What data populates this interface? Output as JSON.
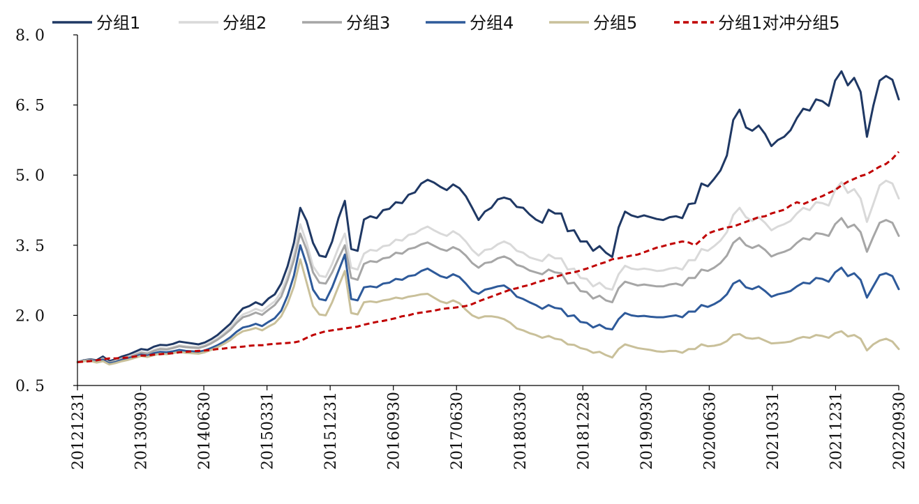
{
  "chart_data": {
    "type": "line",
    "title": "",
    "xlabel": "",
    "ylabel": "",
    "ylim": [
      0.5,
      8.0
    ],
    "y_ticks": [
      0.5,
      2.0,
      3.5,
      5.0,
      6.5,
      8.0
    ],
    "y_tick_labels": [
      "0. 5",
      "2. 0",
      "3. 5",
      "5. 0",
      "6. 5",
      "8. 0"
    ],
    "x_tick_labels": [
      "20121231",
      "20130930",
      "20140630",
      "20150331",
      "20151231",
      "20160930",
      "20170630",
      "20180330",
      "20181228",
      "20190930",
      "20200630",
      "20210331",
      "20211231",
      "20220930"
    ],
    "grid": false,
    "legend_position": "top",
    "series": [
      {
        "name": "分组1",
        "color": "#1F3864",
        "dash": "solid",
        "values": [
          1.0,
          1.04,
          1.06,
          1.04,
          1.12,
          1.02,
          1.06,
          1.12,
          1.16,
          1.22,
          1.28,
          1.26,
          1.33,
          1.37,
          1.36,
          1.39,
          1.44,
          1.42,
          1.4,
          1.38,
          1.42,
          1.49,
          1.58,
          1.7,
          1.82,
          2.0,
          2.15,
          2.2,
          2.28,
          2.22,
          2.36,
          2.45,
          2.68,
          3.05,
          3.55,
          4.3,
          4.02,
          3.55,
          3.28,
          3.25,
          3.58,
          4.08,
          4.45,
          3.42,
          3.38,
          4.05,
          4.12,
          4.08,
          4.25,
          4.28,
          4.42,
          4.4,
          4.58,
          4.63,
          4.82,
          4.9,
          4.84,
          4.75,
          4.68,
          4.8,
          4.72,
          4.55,
          4.3,
          4.04,
          4.22,
          4.3,
          4.48,
          4.52,
          4.48,
          4.32,
          4.3,
          4.16,
          4.05,
          3.98,
          4.26,
          4.18,
          4.18,
          3.8,
          3.82,
          3.58,
          3.58,
          3.38,
          3.48,
          3.34,
          3.25,
          3.88,
          4.22,
          4.14,
          4.1,
          4.14,
          4.1,
          4.06,
          4.04,
          4.1,
          4.12,
          4.08,
          4.38,
          4.4,
          4.82,
          4.76,
          4.92,
          5.1,
          5.42,
          6.18,
          6.4,
          6.02,
          5.95,
          6.06,
          5.88,
          5.62,
          5.75,
          5.82,
          5.96,
          6.22,
          6.42,
          6.38,
          6.62,
          6.58,
          6.48,
          7.02,
          7.22,
          6.92,
          7.08,
          6.78,
          5.82,
          6.48,
          7.02,
          7.12,
          7.04,
          6.62
        ]
      },
      {
        "name": "分组2",
        "color": "#D9D9D9",
        "dash": "solid",
        "values": [
          1.0,
          1.03,
          1.05,
          1.02,
          1.08,
          0.99,
          1.03,
          1.08,
          1.12,
          1.17,
          1.22,
          1.2,
          1.26,
          1.3,
          1.29,
          1.32,
          1.36,
          1.34,
          1.33,
          1.32,
          1.36,
          1.43,
          1.51,
          1.62,
          1.74,
          1.9,
          2.02,
          2.07,
          2.14,
          2.09,
          2.2,
          2.3,
          2.5,
          2.85,
          3.3,
          3.95,
          3.55,
          3.05,
          2.85,
          2.82,
          3.1,
          3.45,
          3.75,
          3.02,
          2.98,
          3.32,
          3.4,
          3.38,
          3.48,
          3.5,
          3.62,
          3.6,
          3.72,
          3.75,
          3.84,
          3.9,
          3.82,
          3.75,
          3.7,
          3.8,
          3.72,
          3.58,
          3.4,
          3.28,
          3.4,
          3.42,
          3.52,
          3.58,
          3.52,
          3.38,
          3.34,
          3.24,
          3.2,
          3.16,
          3.3,
          3.22,
          3.22,
          2.98,
          3.0,
          2.8,
          2.78,
          2.62,
          2.7,
          2.58,
          2.55,
          2.88,
          3.06,
          3.0,
          2.98,
          3.0,
          2.98,
          2.95,
          2.96,
          3.0,
          3.02,
          2.98,
          3.18,
          3.18,
          3.42,
          3.38,
          3.48,
          3.6,
          3.78,
          4.15,
          4.3,
          4.1,
          4.02,
          4.1,
          3.98,
          3.82,
          3.9,
          3.95,
          4.02,
          4.18,
          4.3,
          4.25,
          4.42,
          4.4,
          4.35,
          4.68,
          4.85,
          4.62,
          4.7,
          4.5,
          4.0,
          4.38,
          4.78,
          4.88,
          4.82,
          4.5
        ]
      },
      {
        "name": "分组3",
        "color": "#A6A6A6",
        "dash": "solid",
        "values": [
          1.0,
          1.03,
          1.05,
          1.02,
          1.07,
          0.99,
          1.02,
          1.07,
          1.1,
          1.15,
          1.2,
          1.18,
          1.24,
          1.28,
          1.27,
          1.3,
          1.34,
          1.32,
          1.31,
          1.3,
          1.34,
          1.4,
          1.48,
          1.58,
          1.69,
          1.84,
          1.96,
          2.0,
          2.06,
          2.01,
          2.12,
          2.22,
          2.4,
          2.75,
          3.18,
          3.75,
          3.4,
          2.92,
          2.7,
          2.68,
          2.92,
          3.22,
          3.5,
          2.8,
          2.76,
          3.1,
          3.16,
          3.14,
          3.22,
          3.24,
          3.34,
          3.32,
          3.42,
          3.45,
          3.52,
          3.56,
          3.49,
          3.42,
          3.38,
          3.46,
          3.4,
          3.28,
          3.12,
          3.02,
          3.12,
          3.14,
          3.22,
          3.26,
          3.2,
          3.08,
          3.04,
          2.96,
          2.92,
          2.88,
          2.98,
          2.92,
          2.9,
          2.68,
          2.7,
          2.52,
          2.5,
          2.36,
          2.42,
          2.32,
          2.28,
          2.58,
          2.72,
          2.68,
          2.64,
          2.66,
          2.64,
          2.62,
          2.62,
          2.66,
          2.68,
          2.64,
          2.8,
          2.8,
          2.98,
          2.95,
          3.02,
          3.12,
          3.28,
          3.55,
          3.66,
          3.5,
          3.44,
          3.5,
          3.4,
          3.26,
          3.32,
          3.36,
          3.42,
          3.55,
          3.65,
          3.62,
          3.76,
          3.74,
          3.7,
          3.95,
          4.08,
          3.88,
          3.94,
          3.78,
          3.36,
          3.68,
          3.98,
          4.04,
          3.98,
          3.7
        ]
      },
      {
        "name": "分组4",
        "color": "#2E5A9A",
        "dash": "solid",
        "values": [
          1.0,
          1.02,
          1.04,
          1.01,
          1.05,
          0.97,
          1.0,
          1.05,
          1.08,
          1.12,
          1.16,
          1.14,
          1.19,
          1.22,
          1.21,
          1.23,
          1.26,
          1.24,
          1.23,
          1.22,
          1.25,
          1.3,
          1.36,
          1.44,
          1.53,
          1.65,
          1.74,
          1.77,
          1.82,
          1.77,
          1.86,
          1.94,
          2.1,
          2.42,
          2.85,
          3.5,
          3.08,
          2.55,
          2.35,
          2.32,
          2.6,
          2.95,
          3.3,
          2.35,
          2.32,
          2.6,
          2.62,
          2.6,
          2.68,
          2.7,
          2.78,
          2.76,
          2.84,
          2.86,
          2.95,
          3.0,
          2.92,
          2.84,
          2.8,
          2.88,
          2.82,
          2.68,
          2.52,
          2.46,
          2.55,
          2.58,
          2.62,
          2.64,
          2.55,
          2.4,
          2.35,
          2.28,
          2.22,
          2.14,
          2.22,
          2.16,
          2.14,
          1.98,
          2.0,
          1.86,
          1.84,
          1.74,
          1.8,
          1.72,
          1.7,
          1.92,
          2.05,
          2.0,
          1.98,
          1.99,
          1.97,
          1.96,
          1.96,
          1.98,
          2.0,
          1.96,
          2.08,
          2.08,
          2.22,
          2.18,
          2.24,
          2.32,
          2.45,
          2.68,
          2.75,
          2.6,
          2.56,
          2.62,
          2.52,
          2.4,
          2.45,
          2.48,
          2.52,
          2.62,
          2.7,
          2.68,
          2.8,
          2.78,
          2.72,
          2.92,
          3.02,
          2.84,
          2.9,
          2.76,
          2.38,
          2.62,
          2.86,
          2.9,
          2.84,
          2.56
        ]
      },
      {
        "name": "分组5",
        "color": "#C9C09A",
        "dash": "solid",
        "values": [
          1.0,
          1.02,
          1.03,
          0.99,
          1.02,
          0.95,
          0.98,
          1.02,
          1.05,
          1.09,
          1.13,
          1.11,
          1.15,
          1.18,
          1.17,
          1.19,
          1.22,
          1.2,
          1.19,
          1.18,
          1.21,
          1.26,
          1.32,
          1.39,
          1.47,
          1.58,
          1.66,
          1.69,
          1.73,
          1.68,
          1.76,
          1.83,
          1.98,
          2.25,
          2.62,
          3.2,
          2.7,
          2.2,
          2.02,
          2.0,
          2.28,
          2.62,
          2.95,
          2.05,
          2.02,
          2.28,
          2.3,
          2.28,
          2.32,
          2.34,
          2.38,
          2.36,
          2.4,
          2.42,
          2.45,
          2.46,
          2.38,
          2.3,
          2.26,
          2.32,
          2.26,
          2.12,
          2.0,
          1.94,
          1.98,
          1.98,
          1.96,
          1.92,
          1.84,
          1.72,
          1.68,
          1.62,
          1.58,
          1.52,
          1.56,
          1.5,
          1.48,
          1.38,
          1.37,
          1.3,
          1.27,
          1.2,
          1.22,
          1.15,
          1.1,
          1.28,
          1.38,
          1.34,
          1.3,
          1.28,
          1.26,
          1.23,
          1.22,
          1.24,
          1.24,
          1.2,
          1.28,
          1.28,
          1.38,
          1.34,
          1.35,
          1.38,
          1.45,
          1.58,
          1.6,
          1.52,
          1.5,
          1.52,
          1.46,
          1.4,
          1.41,
          1.42,
          1.44,
          1.5,
          1.54,
          1.52,
          1.58,
          1.56,
          1.52,
          1.62,
          1.66,
          1.55,
          1.58,
          1.5,
          1.25,
          1.38,
          1.46,
          1.5,
          1.44,
          1.28
        ]
      },
      {
        "name": "分组1对冲分组5",
        "color": "#C00000",
        "dash": "dashed",
        "values": [
          1.0,
          1.01,
          1.02,
          1.04,
          1.06,
          1.08,
          1.08,
          1.09,
          1.1,
          1.12,
          1.14,
          1.14,
          1.16,
          1.17,
          1.18,
          1.19,
          1.21,
          1.22,
          1.23,
          1.24,
          1.25,
          1.26,
          1.28,
          1.29,
          1.31,
          1.32,
          1.33,
          1.35,
          1.36,
          1.36,
          1.38,
          1.39,
          1.4,
          1.41,
          1.42,
          1.45,
          1.52,
          1.58,
          1.62,
          1.66,
          1.68,
          1.7,
          1.72,
          1.74,
          1.76,
          1.8,
          1.83,
          1.86,
          1.88,
          1.91,
          1.94,
          1.98,
          2.0,
          2.04,
          2.06,
          2.08,
          2.1,
          2.13,
          2.15,
          2.16,
          2.18,
          2.2,
          2.24,
          2.3,
          2.35,
          2.4,
          2.45,
          2.5,
          2.55,
          2.58,
          2.62,
          2.65,
          2.7,
          2.74,
          2.78,
          2.82,
          2.86,
          2.9,
          2.92,
          2.96,
          3.0,
          3.05,
          3.1,
          3.14,
          3.2,
          3.22,
          3.25,
          3.28,
          3.3,
          3.35,
          3.4,
          3.45,
          3.48,
          3.52,
          3.55,
          3.58,
          3.56,
          3.5,
          3.62,
          3.75,
          3.8,
          3.84,
          3.88,
          3.9,
          3.95,
          4.0,
          4.05,
          4.1,
          4.12,
          4.18,
          4.22,
          4.26,
          4.35,
          4.42,
          4.38,
          4.44,
          4.5,
          4.55,
          4.62,
          4.68,
          4.78,
          4.86,
          4.92,
          4.98,
          5.02,
          5.1,
          5.18,
          5.24,
          5.35,
          5.5
        ]
      }
    ]
  }
}
